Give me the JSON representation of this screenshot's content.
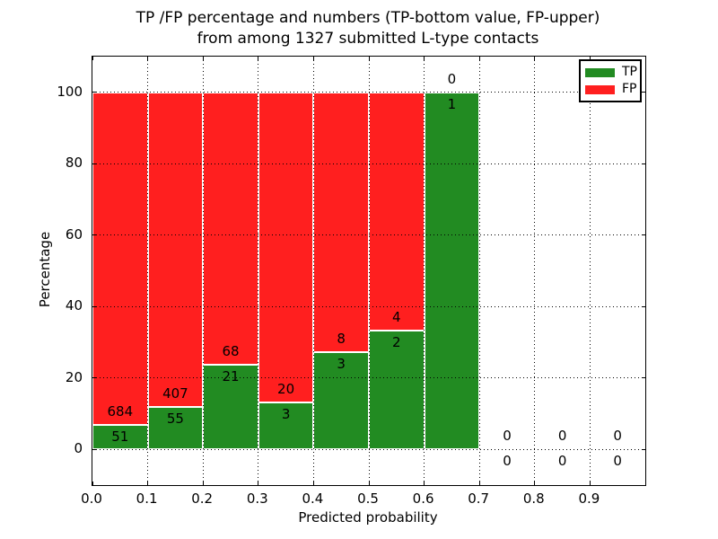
{
  "title": {
    "line1": "TP /FP percentage and numbers (TP-bottom value, FP-upper)",
    "line2": "from among 1327 submitted L-type contacts"
  },
  "axes": {
    "xlabel": "Predicted probability",
    "ylabel": "Percentage"
  },
  "chart_data": {
    "type": "bar",
    "stacked": true,
    "normalized_to_percent": true,
    "title": "TP /FP percentage and numbers (TP-bottom value, FP-upper) from among 1327 submitted L-type contacts",
    "xlabel": "Predicted probability",
    "ylabel": "Percentage",
    "total_contacts": 1327,
    "bin_starts": [
      0.0,
      0.1,
      0.2,
      0.3,
      0.4,
      0.5,
      0.6,
      0.7,
      0.8,
      0.9
    ],
    "bin_width": 0.1,
    "series": [
      {
        "name": "TP",
        "color": "#228b22",
        "values": [
          51,
          55,
          21,
          3,
          3,
          2,
          1,
          0,
          0,
          0
        ]
      },
      {
        "name": "FP",
        "color": "#ff1f1f",
        "values": [
          684,
          407,
          68,
          20,
          8,
          4,
          0,
          0,
          0,
          0
        ]
      }
    ],
    "tp_percent_of_bin": [
      6.9,
      11.9,
      23.6,
      13.0,
      27.3,
      33.3,
      100.0,
      0.0,
      0.0,
      0.0
    ],
    "x_tick_labels": [
      "0.0",
      "0.1",
      "0.2",
      "0.3",
      "0.4",
      "0.5",
      "0.6",
      "0.7",
      "0.8",
      "0.9"
    ],
    "y_ticks": [
      0,
      20,
      40,
      60,
      80,
      100
    ],
    "xlim": [
      0.0,
      1.0
    ],
    "ylim": [
      -10,
      110
    ],
    "grid": "dotted",
    "grid_color": "#000000",
    "bar_edge_color": "#ffffff",
    "legend_position": "upper right"
  }
}
